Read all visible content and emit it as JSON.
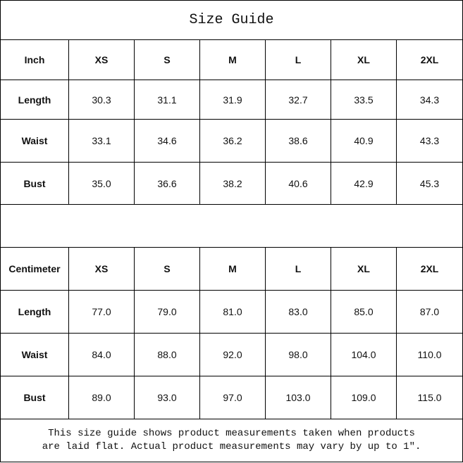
{
  "title": "Size Guide",
  "sizes": [
    "XS",
    "S",
    "M",
    "L",
    "XL",
    "2XL"
  ],
  "inch": {
    "unit_label": "Inch",
    "rows": [
      {
        "label": "Length",
        "values": [
          "30.3",
          "31.1",
          "31.9",
          "32.7",
          "33.5",
          "34.3"
        ]
      },
      {
        "label": "Waist",
        "values": [
          "33.1",
          "34.6",
          "36.2",
          "38.6",
          "40.9",
          "43.3"
        ]
      },
      {
        "label": "Bust",
        "values": [
          "35.0",
          "36.6",
          "38.2",
          "40.6",
          "42.9",
          "45.3"
        ]
      }
    ]
  },
  "cm": {
    "unit_label": "Centimeter",
    "rows": [
      {
        "label": "Length",
        "values": [
          "77.0",
          "79.0",
          "81.0",
          "83.0",
          "85.0",
          "87.0"
        ]
      },
      {
        "label": "Waist",
        "values": [
          "84.0",
          "88.0",
          "92.0",
          "98.0",
          "104.0",
          "110.0"
        ]
      },
      {
        "label": "Bust",
        "values": [
          "89.0",
          "93.0",
          "97.0",
          "103.0",
          "109.0",
          "115.0"
        ]
      }
    ]
  },
  "note": {
    "line1": "This size guide shows product measurements taken when products",
    "line2": "are laid flat. Actual product measurements may vary by up to 1″."
  }
}
